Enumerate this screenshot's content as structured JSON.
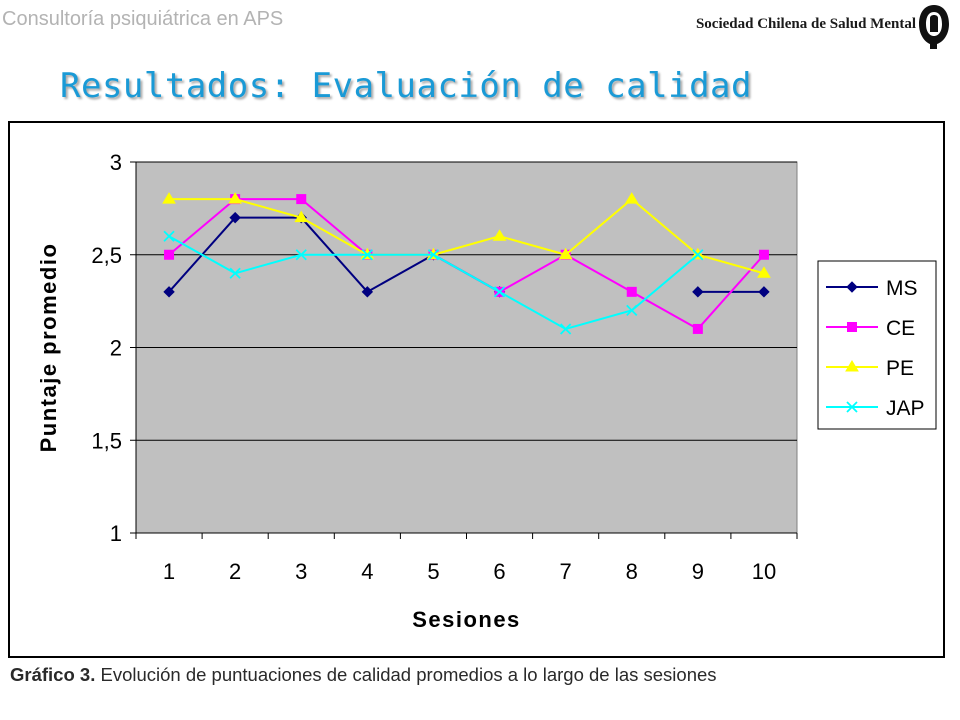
{
  "header": {
    "top_note": "Consultoría psiquiátrica en APS",
    "society": "Sociedad Chilena de Salud Mental",
    "logo_icon": "society-logo-icon"
  },
  "slide": {
    "title": "Resultados: Evaluación de calidad"
  },
  "caption": {
    "label": "Gráfico 3.",
    "text": " Evolución de puntuaciones de calidad promedios a lo largo de las sesiones"
  },
  "chart_data": {
    "type": "line",
    "title": "",
    "xlabel": "Sesiones",
    "ylabel": "Puntaje promedio",
    "categories": [
      "1",
      "2",
      "3",
      "4",
      "5",
      "6",
      "7",
      "8",
      "9",
      "10"
    ],
    "ylim": [
      1,
      3
    ],
    "yticks": [
      1,
      1.5,
      2,
      2.5,
      3
    ],
    "ytick_labels": [
      "1",
      "1,5",
      "2",
      "2,5",
      "3"
    ],
    "grid": "horizontal",
    "legend_position": "right",
    "plot_background": "#c0c0c0",
    "series": [
      {
        "name": "MS",
        "color": "#000080",
        "marker": "diamond",
        "values": [
          2.3,
          2.7,
          2.7,
          2.3,
          2.5,
          2.3,
          null,
          null,
          2.3,
          2.3
        ]
      },
      {
        "name": "CE",
        "color": "#ff00ff",
        "marker": "square",
        "values": [
          2.5,
          2.8,
          2.8,
          2.5,
          2.5,
          2.3,
          2.5,
          2.3,
          2.1,
          2.5
        ]
      },
      {
        "name": "PE",
        "color": "#ffff00",
        "marker": "triangle",
        "values": [
          2.8,
          2.8,
          2.7,
          2.5,
          2.5,
          2.6,
          2.5,
          2.8,
          2.5,
          2.4
        ]
      },
      {
        "name": "JAP",
        "color": "#00ffff",
        "marker": "x",
        "values": [
          2.6,
          2.4,
          2.5,
          2.5,
          2.5,
          2.3,
          2.1,
          2.2,
          2.5,
          null
        ]
      }
    ]
  }
}
